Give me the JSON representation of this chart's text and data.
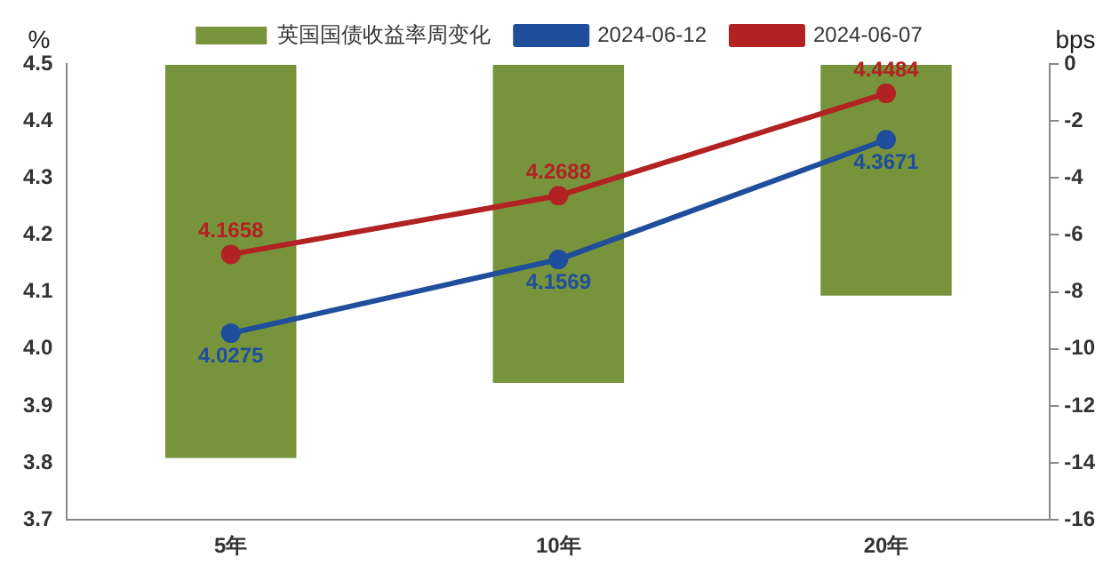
{
  "chart_data": {
    "type": "bar",
    "categories": [
      "5年",
      "10年",
      "20年"
    ],
    "ylabel": "%",
    "y2label": "bps",
    "ylim": [
      3.7,
      4.5
    ],
    "yticks": [
      {
        "value": 3.7,
        "label": "3.7"
      },
      {
        "value": 3.8,
        "label": "3.8"
      },
      {
        "value": 3.9,
        "label": "3.9"
      },
      {
        "value": 4.0,
        "label": "4.0"
      },
      {
        "value": 4.1,
        "label": "4.1"
      },
      {
        "value": 4.2,
        "label": "4.2"
      },
      {
        "value": 4.3,
        "label": "4.3"
      },
      {
        "value": 4.4,
        "label": "4.4"
      },
      {
        "value": 4.5,
        "label": "4.5"
      }
    ],
    "y2lim": [
      -16,
      0
    ],
    "y2ticks": [
      -16,
      -14,
      -12,
      -10,
      -8,
      -6,
      -4,
      -2,
      0
    ],
    "grid": false,
    "legend": "top",
    "marker": "circle",
    "series": [
      {
        "name": "英国国债收益率周变化",
        "axis": "y2",
        "color": "#77933c",
        "values": [
          -13.83,
          -11.19,
          -8.13
        ]
      },
      {
        "name": "2024-06-12",
        "type": "line",
        "color": "#1f4e9c",
        "values": [
          4.0275,
          4.1569,
          4.3671
        ],
        "value_labels": [
          "4.0275",
          "4.1569",
          "4.3671"
        ]
      },
      {
        "name": "2024-06-07",
        "type": "line",
        "color": "#b22222",
        "values": [
          4.1658,
          4.2688,
          4.4484
        ],
        "value_labels": [
          "4.1658",
          "4.2688",
          "4.4484"
        ]
      }
    ]
  }
}
